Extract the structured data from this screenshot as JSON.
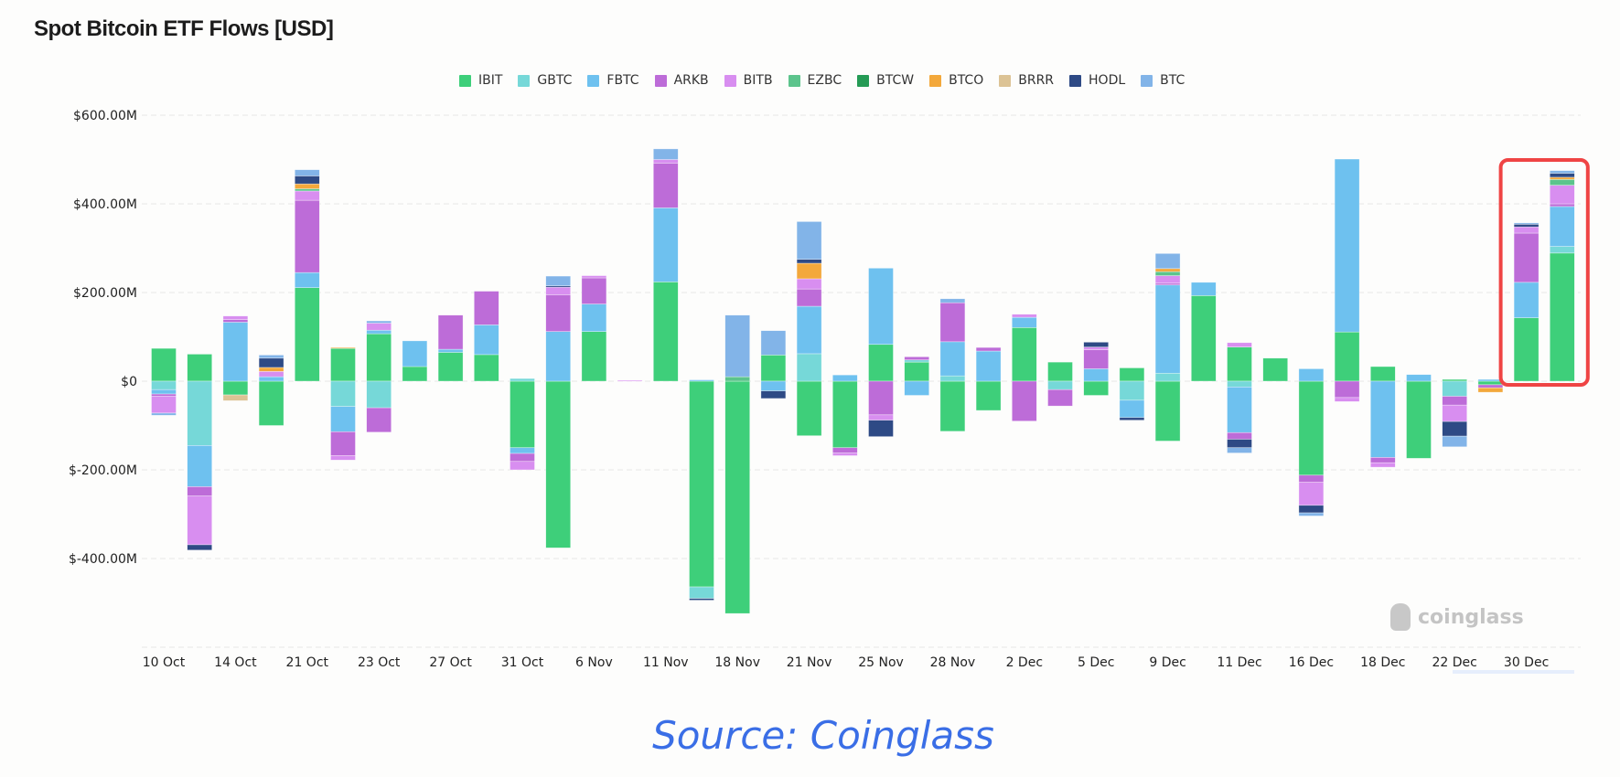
{
  "chart_data": {
    "type": "bar",
    "stacked": true,
    "title": "Spot Bitcoin ETF Flows [USD]",
    "xlabel": "",
    "ylabel": "",
    "units": "USD millions",
    "ylim": [
      -600,
      600
    ],
    "y_ticks": [
      600,
      400,
      200,
      0,
      -200,
      -400
    ],
    "y_tick_labels": [
      "$600.00M",
      "$400.00M",
      "$200.00M",
      "$0",
      "$-200.00M",
      "$-400.00M"
    ],
    "grid": true,
    "legend_position": "top-center",
    "categories": [
      "10 Oct",
      "",
      "14 Oct",
      "",
      "21 Oct",
      "",
      "23 Oct",
      "",
      "27 Oct",
      "",
      "31 Oct",
      "",
      "6 Nov",
      "",
      "11 Nov",
      "",
      "18 Nov",
      "",
      "21 Nov",
      "",
      "25 Nov",
      "",
      "28 Nov",
      "",
      "2 Dec",
      "",
      "5 Dec",
      "",
      "9 Dec",
      "",
      "11 Dec",
      "",
      "16 Dec",
      "",
      "18 Dec",
      "",
      "22 Dec",
      "",
      "30 Dec",
      ""
    ],
    "series": [
      {
        "name": "IBIT",
        "color": "#3ecf7a",
        "values": [
          74,
          61,
          -31,
          -100,
          211,
          74,
          107,
          33,
          65,
          60,
          -150,
          -376,
          112,
          0,
          224,
          -464,
          -524,
          59,
          -123,
          -150,
          83,
          43,
          -113,
          -66,
          121,
          43,
          -32,
          30,
          -135,
          193,
          77,
          52,
          -212,
          111,
          33,
          -174,
          4,
          -8,
          143,
          289
        ]
      },
      {
        "name": "GBTC",
        "color": "#76d8d8",
        "values": [
          -19,
          -145,
          0,
          0,
          0,
          -57,
          -60,
          0,
          0,
          0,
          6,
          0,
          0,
          0,
          0,
          -26,
          0,
          0,
          62,
          0,
          0,
          5,
          12,
          0,
          0,
          -19,
          0,
          -43,
          18,
          0,
          -13,
          0,
          0,
          0,
          0,
          0,
          -34,
          0,
          0,
          15
        ]
      },
      {
        "name": "FBTC",
        "color": "#6ec1ef",
        "values": [
          -10,
          -93,
          133,
          10,
          34,
          -57,
          8,
          58,
          7,
          67,
          -13,
          112,
          62,
          0,
          167,
          3,
          0,
          -22,
          107,
          14,
          172,
          -32,
          77,
          68,
          23,
          0,
          28,
          -39,
          199,
          30,
          -103,
          0,
          28,
          390,
          -172,
          15,
          0,
          4,
          80,
          90
        ]
      },
      {
        "name": "ARKB",
        "color": "#bd6cd8",
        "values": [
          -5,
          -21,
          6,
          0,
          163,
          -54,
          -55,
          0,
          77,
          76,
          -18,
          83,
          59,
          0,
          101,
          0,
          0,
          0,
          39,
          -12,
          -76,
          7,
          88,
          8,
          -90,
          -37,
          43,
          0,
          4,
          0,
          -15,
          0,
          -16,
          -37,
          -12,
          0,
          -20,
          -7,
          111,
          6
        ]
      },
      {
        "name": "BITB",
        "color": "#d88ef0",
        "values": [
          -38,
          -110,
          8,
          12,
          21,
          -10,
          16,
          0,
          0,
          0,
          -19,
          17,
          5,
          2,
          8,
          0,
          0,
          0,
          23,
          -6,
          -12,
          0,
          0,
          0,
          7,
          0,
          6,
          0,
          17,
          0,
          10,
          0,
          -52,
          -9,
          -10,
          0,
          -37,
          0,
          14,
          42
        ]
      },
      {
        "name": "EZBC",
        "color": "#5cc48c",
        "values": [
          0,
          0,
          0,
          0,
          5,
          0,
          0,
          0,
          0,
          0,
          0,
          0,
          0,
          0,
          0,
          0,
          10,
          0,
          0,
          0,
          0,
          0,
          0,
          0,
          0,
          0,
          0,
          0,
          9,
          0,
          0,
          0,
          0,
          0,
          0,
          0,
          0,
          0,
          0,
          13
        ]
      },
      {
        "name": "BTCW",
        "color": "#259b55",
        "values": [
          0,
          0,
          0,
          0,
          0,
          0,
          0,
          0,
          0,
          0,
          0,
          0,
          0,
          0,
          0,
          0,
          0,
          0,
          0,
          0,
          0,
          0,
          0,
          0,
          0,
          0,
          0,
          0,
          0,
          0,
          0,
          0,
          0,
          0,
          0,
          0,
          0,
          0,
          0,
          0
        ]
      },
      {
        "name": "BTCO",
        "color": "#f3a83b",
        "values": [
          0,
          0,
          0,
          9,
          11,
          2,
          0,
          0,
          0,
          0,
          0,
          0,
          0,
          0,
          0,
          0,
          0,
          0,
          35,
          0,
          0,
          0,
          0,
          0,
          0,
          0,
          0,
          0,
          7,
          0,
          0,
          0,
          0,
          0,
          0,
          0,
          0,
          -10,
          0,
          5
        ]
      },
      {
        "name": "BRRR",
        "color": "#dcc395",
        "values": [
          0,
          0,
          -13,
          0,
          0,
          0,
          0,
          0,
          0,
          0,
          0,
          0,
          0,
          0,
          0,
          0,
          0,
          0,
          0,
          0,
          0,
          0,
          0,
          0,
          0,
          0,
          0,
          0,
          0,
          0,
          0,
          0,
          0,
          0,
          0,
          0,
          0,
          0,
          0,
          0
        ]
      },
      {
        "name": "HODL",
        "color": "#2e4a85",
        "values": [
          0,
          -12,
          0,
          21,
          18,
          0,
          0,
          0,
          0,
          0,
          0,
          3,
          0,
          0,
          0,
          -4,
          0,
          -17,
          9,
          0,
          -37,
          0,
          0,
          0,
          0,
          0,
          11,
          -6,
          0,
          0,
          -19,
          0,
          -17,
          0,
          0,
          0,
          -33,
          0,
          6,
          9
        ]
      },
      {
        "name": "BTC",
        "color": "#82b4e8",
        "values": [
          -5,
          0,
          0,
          7,
          14,
          0,
          5,
          0,
          0,
          0,
          0,
          22,
          0,
          0,
          24,
          0,
          139,
          55,
          85,
          0,
          0,
          0,
          9,
          0,
          0,
          0,
          0,
          0,
          34,
          0,
          -12,
          0,
          -7,
          0,
          0,
          0,
          -24,
          0,
          3,
          6
        ]
      }
    ],
    "highlight": {
      "categories_range": [
        "30 Dec",
        ""
      ],
      "color": "#ef4444"
    }
  },
  "watermark": "coinglass",
  "source": "Source: Coinglass"
}
